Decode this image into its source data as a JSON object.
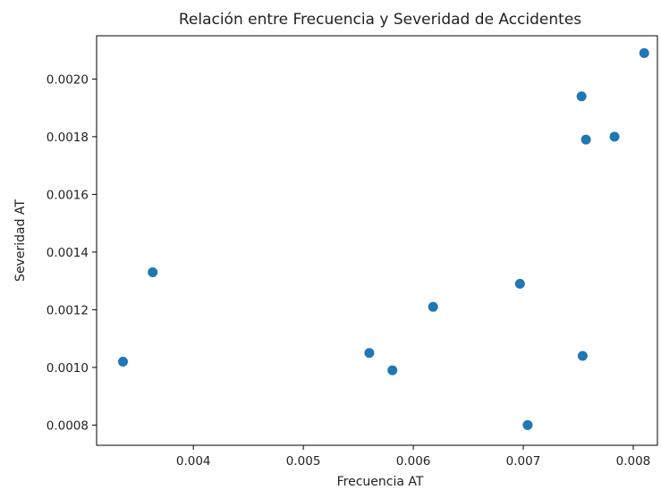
{
  "chart_data": {
    "type": "scatter",
    "title": "Relación entre Frecuencia y Severidad de Accidentes",
    "xlabel": "Frecuencia AT",
    "ylabel": "Severidad AT",
    "xlim": [
      0.00312,
      0.00822
    ],
    "ylim": [
      0.00073,
      0.00215
    ],
    "xticks": [
      0.004,
      0.005,
      0.006,
      0.007,
      0.008
    ],
    "xtick_labels": [
      "0.004",
      "0.005",
      "0.006",
      "0.007",
      "0.008"
    ],
    "yticks": [
      0.0008,
      0.001,
      0.0012,
      0.0014,
      0.0016,
      0.0018,
      0.002
    ],
    "ytick_labels": [
      "0.0008",
      "0.0010",
      "0.0012",
      "0.0014",
      "0.0016",
      "0.0018",
      "0.0020"
    ],
    "grid": false,
    "marker_color": "#1f77b4",
    "points": [
      {
        "x": 0.00336,
        "y": 0.00102
      },
      {
        "x": 0.00363,
        "y": 0.00133
      },
      {
        "x": 0.0056,
        "y": 0.00105
      },
      {
        "x": 0.00581,
        "y": 0.00099
      },
      {
        "x": 0.00618,
        "y": 0.00121
      },
      {
        "x": 0.00697,
        "y": 0.00129
      },
      {
        "x": 0.00704,
        "y": 0.0008
      },
      {
        "x": 0.00753,
        "y": 0.00194
      },
      {
        "x": 0.00754,
        "y": 0.00104
      },
      {
        "x": 0.00757,
        "y": 0.00179
      },
      {
        "x": 0.00783,
        "y": 0.0018
      },
      {
        "x": 0.0081,
        "y": 0.00209
      }
    ]
  }
}
